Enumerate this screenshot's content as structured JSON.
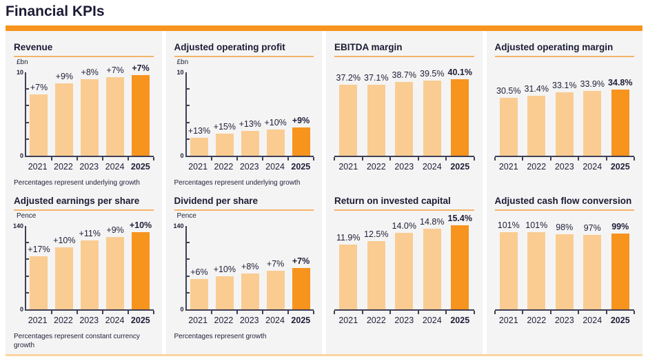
{
  "page": {
    "title": "Financial KPIs"
  },
  "theme": {
    "accent_orange": "#F7941D",
    "bar_light": "#FACC92",
    "bar_highlight": "#F7941D",
    "title_rule_orange": "#F4B469",
    "bottom_rule_orange": "#FBD49E",
    "panel_gray": "#F4F4F4",
    "text_navy": "#1E1E38",
    "axis_dark": "#3F3F55"
  },
  "chart_data": [
    {
      "id": "revenue",
      "type": "bar",
      "title": "Revenue",
      "unit": "£bn",
      "categories": [
        "2021",
        "2022",
        "2023",
        "2024",
        "2025"
      ],
      "values": [
        7.2,
        8.5,
        9.0,
        9.3,
        9.5
      ],
      "bar_labels": [
        "+7%",
        "+9%",
        "+8%",
        "+7%",
        "+7%"
      ],
      "axis": {
        "max_label": "10",
        "min_label": "0",
        "ylim": [
          0,
          10
        ]
      },
      "scale_max": 10,
      "highlight_index": 4,
      "footnote": "Percentages represent underlying growth"
    },
    {
      "id": "adjusted-operating-profit",
      "type": "bar",
      "title": "Adjusted operating profit",
      "unit": "£bn",
      "categories": [
        "2021",
        "2022",
        "2023",
        "2024",
        "2025"
      ],
      "values": [
        2.1,
        2.6,
        2.9,
        3.1,
        3.3
      ],
      "bar_labels": [
        "+13%",
        "+15%",
        "+13%",
        "+10%",
        "+9%"
      ],
      "axis": {
        "max_label": "10",
        "min_label": "0",
        "ylim": [
          0,
          10
        ]
      },
      "scale_max": 10,
      "highlight_index": 4,
      "footnote": "Percentages represent underlying growth"
    },
    {
      "id": "ebitda-margin",
      "type": "bar",
      "title": "EBITDA margin",
      "unit": null,
      "categories": [
        "2021",
        "2022",
        "2023",
        "2024",
        "2025"
      ],
      "values": [
        37.2,
        37.1,
        38.7,
        39.5,
        40.1
      ],
      "bar_labels": [
        "37.2%",
        "37.1%",
        "38.7%",
        "39.5%",
        "40.1%"
      ],
      "axis": null,
      "scale_max": 47,
      "highlight_index": 4,
      "footnote": null
    },
    {
      "id": "adjusted-operating-margin",
      "type": "bar",
      "title": "Adjusted operating margin",
      "unit": null,
      "categories": [
        "2021",
        "2022",
        "2023",
        "2024",
        "2025"
      ],
      "values": [
        30.5,
        31.4,
        33.1,
        33.9,
        34.8
      ],
      "bar_labels": [
        "30.5%",
        "31.4%",
        "33.1%",
        "33.9%",
        "34.8%"
      ],
      "axis": null,
      "scale_max": 47,
      "highlight_index": 4,
      "footnote": null
    },
    {
      "id": "adjusted-earnings-per-share",
      "type": "bar",
      "title": "Adjusted earnings per share",
      "unit": "Pence",
      "categories": [
        "2021",
        "2022",
        "2023",
        "2024",
        "2025"
      ],
      "values": [
        88,
        102,
        114,
        120,
        128
      ],
      "bar_labels": [
        "+17%",
        "+10%",
        "+11%",
        "+9%",
        "+10%"
      ],
      "axis": {
        "max_label": "140",
        "min_label": "0",
        "ylim": [
          0,
          140
        ]
      },
      "scale_max": 140,
      "highlight_index": 4,
      "footnote": "Percentages represent constant currency growth"
    },
    {
      "id": "dividend-per-share",
      "type": "bar",
      "title": "Dividend per share",
      "unit": "Pence",
      "categories": [
        "2021",
        "2022",
        "2023",
        "2024",
        "2025"
      ],
      "values": [
        50,
        55,
        59,
        64,
        68
      ],
      "bar_labels": [
        "+6%",
        "+10%",
        "+8%",
        "+7%",
        "+7%"
      ],
      "axis": {
        "max_label": "140",
        "min_label": "0",
        "ylim": [
          0,
          140
        ]
      },
      "scale_max": 140,
      "highlight_index": 4,
      "footnote": "Percentages represent growth"
    },
    {
      "id": "return-on-invested-capital",
      "type": "bar",
      "title": "Return on invested capital",
      "unit": null,
      "categories": [
        "2021",
        "2022",
        "2023",
        "2024",
        "2025"
      ],
      "values": [
        11.9,
        12.5,
        14.0,
        14.8,
        15.4
      ],
      "bar_labels": [
        "11.9%",
        "12.5%",
        "14.0%",
        "14.8%",
        "15.4%"
      ],
      "axis": null,
      "scale_max": 16.4,
      "highlight_index": 4,
      "footnote": null
    },
    {
      "id": "adjusted-cash-flow-conversion",
      "type": "bar",
      "title": "Adjusted cash flow conversion",
      "unit": null,
      "categories": [
        "2021",
        "2022",
        "2023",
        "2024",
        "2025"
      ],
      "values": [
        101,
        101,
        98,
        97,
        99
      ],
      "bar_labels": [
        "101%",
        "101%",
        "98%",
        "97%",
        "99%"
      ],
      "axis": null,
      "scale_max": 117,
      "highlight_index": 4,
      "footnote": null
    }
  ]
}
